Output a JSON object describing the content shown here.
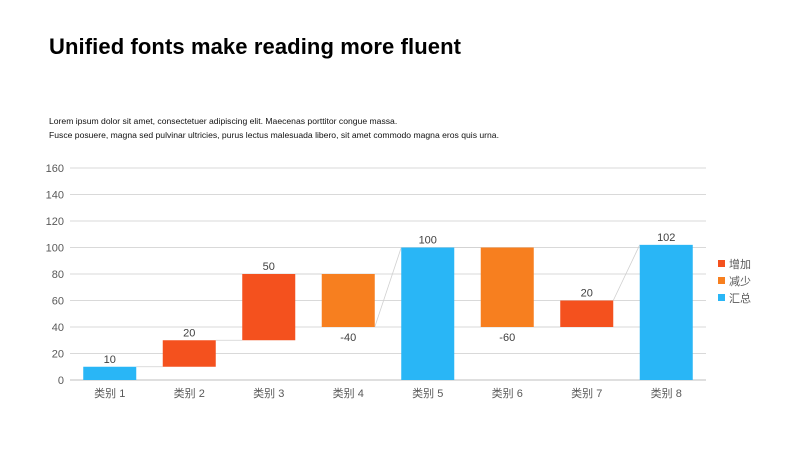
{
  "slide": {
    "title": "Unified fonts make reading more fluent",
    "body_lines": [
      "Lorem ipsum dolor sit amet, consectetuer adipiscing elit. Maecenas porttitor congue massa.",
      "Fusce posuere, magna sed pulvinar ultricies, purus lectus malesuada libero, sit amet commodo magna eros quis urna."
    ]
  },
  "chart_data": {
    "type": "bar",
    "subtype": "waterfall",
    "title": "",
    "xlabel": "",
    "ylabel": "",
    "ylim": [
      0,
      160
    ],
    "yticks": [
      0,
      20,
      40,
      60,
      80,
      100,
      120,
      140,
      160
    ],
    "grid": true,
    "legend_position": "right",
    "categories": [
      "类别 1",
      "类别 2",
      "类别 3",
      "类别 4",
      "类别 5",
      "类别 6",
      "类别 7",
      "类别 8"
    ],
    "bars": [
      {
        "category": "类别 1",
        "kind": "total",
        "start": 0,
        "end": 10,
        "label": "10"
      },
      {
        "category": "类别 2",
        "kind": "increase",
        "start": 10,
        "end": 30,
        "label": "20"
      },
      {
        "category": "类别 3",
        "kind": "increase",
        "start": 30,
        "end": 80,
        "label": "50"
      },
      {
        "category": "类别 4",
        "kind": "decrease",
        "start": 80,
        "end": 40,
        "label": "-40"
      },
      {
        "category": "类别 5",
        "kind": "total",
        "start": 0,
        "end": 100,
        "label": "100"
      },
      {
        "category": "类别 6",
        "kind": "decrease",
        "start": 100,
        "end": 40,
        "label": "-60"
      },
      {
        "category": "类别 7",
        "kind": "increase",
        "start": 40,
        "end": 60,
        "label": "20"
      },
      {
        "category": "类别 8",
        "kind": "total",
        "start": 0,
        "end": 102,
        "label": "102"
      }
    ],
    "legend": [
      {
        "kind": "increase",
        "name": "增加"
      },
      {
        "kind": "decrease",
        "name": "减少"
      },
      {
        "kind": "total",
        "name": "汇总"
      }
    ],
    "colors": {
      "increase": "#f4511e",
      "decrease": "#f77f1f",
      "total": "#29b6f6",
      "grid": "#d9d9d9",
      "axis_text": "#595959"
    }
  }
}
